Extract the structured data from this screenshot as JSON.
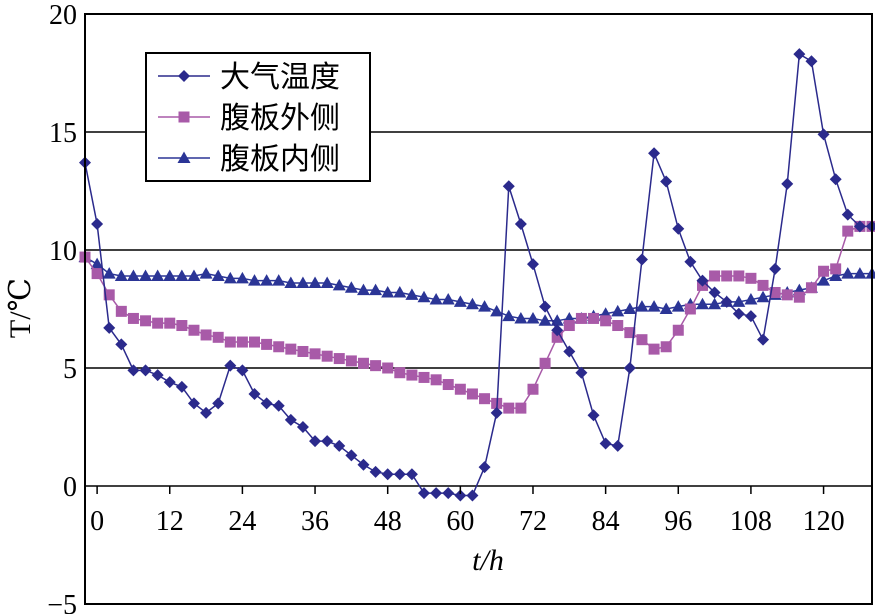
{
  "chart_data": {
    "type": "line",
    "xlabel": "t/h",
    "ylabel": "T/℃",
    "xlim": [
      -2,
      128
    ],
    "ylim": [
      -5,
      20
    ],
    "xticks": [
      "0",
      "12",
      "24",
      "36",
      "48",
      "60",
      "72",
      "84",
      "96",
      "108",
      "120"
    ],
    "xtick_values": [
      0,
      12,
      24,
      36,
      48,
      60,
      72,
      84,
      96,
      108,
      120
    ],
    "yticks": [
      "20",
      "15",
      "10",
      "5",
      "0",
      "−5"
    ],
    "ytick_values": [
      20,
      15,
      10,
      5,
      0,
      -5
    ],
    "grid": "horizontal",
    "legend_position": "top-left",
    "series": [
      {
        "name": "大气温度",
        "color": "#2b2a8c",
        "marker": "diamond",
        "x": [
          -2,
          0,
          2,
          4,
          6,
          8,
          10,
          12,
          14,
          16,
          18,
          20,
          22,
          24,
          26,
          28,
          30,
          32,
          34,
          36,
          38,
          40,
          42,
          44,
          46,
          48,
          50,
          52,
          54,
          56,
          58,
          60,
          62,
          64,
          66,
          68,
          70,
          72,
          74,
          76,
          78,
          80,
          82,
          84,
          86,
          88,
          90,
          92,
          94,
          96,
          98,
          100,
          102,
          104,
          106,
          108,
          110,
          112,
          114,
          116,
          118,
          120,
          122,
          124,
          126,
          128
        ],
        "values": [
          13.7,
          11.1,
          6.7,
          6.0,
          4.9,
          4.9,
          4.7,
          4.4,
          4.2,
          3.5,
          3.1,
          3.5,
          5.1,
          4.9,
          3.9,
          3.5,
          3.4,
          2.8,
          2.5,
          1.9,
          1.9,
          1.7,
          1.3,
          0.9,
          0.6,
          0.5,
          0.5,
          0.5,
          -0.3,
          -0.3,
          -0.3,
          -0.4,
          -0.4,
          0.8,
          3.1,
          12.7,
          11.1,
          9.4,
          7.6,
          6.6,
          5.7,
          4.8,
          3.0,
          1.8,
          1.7,
          5.0,
          9.6,
          14.1,
          12.9,
          10.9,
          9.5,
          8.7,
          8.2,
          7.8,
          7.3,
          7.2,
          6.2,
          9.2,
          12.8,
          18.3,
          18.0,
          14.9,
          13.0,
          11.5,
          11.0,
          11.0
        ]
      },
      {
        "name": "腹板外侧",
        "color": "#a85aa8",
        "marker": "square",
        "x": [
          -2,
          0,
          2,
          4,
          6,
          8,
          10,
          12,
          14,
          16,
          18,
          20,
          22,
          24,
          26,
          28,
          30,
          32,
          34,
          36,
          38,
          40,
          42,
          44,
          46,
          48,
          50,
          52,
          54,
          56,
          58,
          60,
          62,
          64,
          66,
          68,
          70,
          72,
          74,
          76,
          78,
          80,
          82,
          84,
          86,
          88,
          90,
          92,
          94,
          96,
          98,
          100,
          102,
          104,
          106,
          108,
          110,
          112,
          114,
          116,
          118,
          120,
          122,
          124,
          126,
          128
        ],
        "values": [
          9.7,
          9.0,
          8.1,
          7.4,
          7.1,
          7.0,
          6.9,
          6.9,
          6.8,
          6.6,
          6.4,
          6.3,
          6.1,
          6.1,
          6.1,
          6.0,
          5.9,
          5.8,
          5.7,
          5.6,
          5.5,
          5.4,
          5.3,
          5.2,
          5.1,
          5.0,
          4.8,
          4.7,
          4.6,
          4.5,
          4.3,
          4.1,
          3.9,
          3.7,
          3.5,
          3.3,
          3.3,
          4.1,
          5.2,
          6.3,
          6.8,
          7.1,
          7.1,
          7.0,
          6.8,
          6.5,
          6.2,
          5.8,
          5.9,
          6.6,
          7.5,
          8.5,
          8.9,
          8.9,
          8.9,
          8.8,
          8.5,
          8.2,
          8.1,
          8.0,
          8.4,
          9.1,
          9.2,
          10.8,
          11.0,
          11.0
        ]
      },
      {
        "name": "腹板内侧",
        "color": "#2b3596",
        "marker": "triangle",
        "x": [
          -2,
          0,
          2,
          4,
          6,
          8,
          10,
          12,
          14,
          16,
          18,
          20,
          22,
          24,
          26,
          28,
          30,
          32,
          34,
          36,
          38,
          40,
          42,
          44,
          46,
          48,
          50,
          52,
          54,
          56,
          58,
          60,
          62,
          64,
          66,
          68,
          70,
          72,
          74,
          76,
          78,
          80,
          82,
          84,
          86,
          88,
          90,
          92,
          94,
          96,
          98,
          100,
          102,
          104,
          106,
          108,
          110,
          112,
          114,
          116,
          118,
          120,
          122,
          124,
          126,
          128
        ],
        "values": [
          9.7,
          9.4,
          9.0,
          8.9,
          8.9,
          8.9,
          8.9,
          8.9,
          8.9,
          8.9,
          9.0,
          8.9,
          8.8,
          8.8,
          8.7,
          8.7,
          8.7,
          8.6,
          8.6,
          8.6,
          8.6,
          8.5,
          8.4,
          8.3,
          8.3,
          8.2,
          8.2,
          8.1,
          8.0,
          7.9,
          7.9,
          7.8,
          7.7,
          7.6,
          7.4,
          7.2,
          7.1,
          7.1,
          7.0,
          7.0,
          7.1,
          7.1,
          7.2,
          7.3,
          7.4,
          7.5,
          7.6,
          7.6,
          7.5,
          7.6,
          7.7,
          7.7,
          7.7,
          7.8,
          7.8,
          7.9,
          8.0,
          8.1,
          8.2,
          8.3,
          8.4,
          8.7,
          8.9,
          9.0,
          9.0,
          9.0
        ]
      }
    ]
  }
}
